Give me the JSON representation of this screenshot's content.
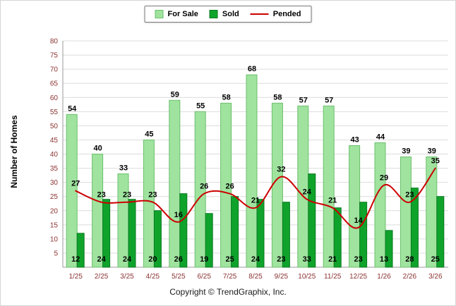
{
  "chart_data": {
    "type": "bar",
    "title": "",
    "ylabel": "Number of Homes",
    "xlabel": "",
    "ylim": [
      0,
      80
    ],
    "ytick_step": 5,
    "grid": true,
    "legend_position": "top-center",
    "categories": [
      "1/25",
      "2/25",
      "3/25",
      "4/25",
      "5/25",
      "6/25",
      "7/25",
      "8/25",
      "9/25",
      "10/25",
      "11/25",
      "12/25",
      "1/26",
      "2/26",
      "3/26"
    ],
    "series": [
      {
        "name": "For Sale",
        "type": "bar",
        "color": "#9FE39F",
        "border": "#6CBF6C",
        "values": [
          54,
          40,
          33,
          45,
          59,
          55,
          58,
          68,
          58,
          57,
          57,
          43,
          44,
          39,
          39
        ]
      },
      {
        "name": "Sold",
        "type": "bar",
        "color": "#0FA32C",
        "border": "#0A7A1F",
        "values": [
          12,
          24,
          24,
          20,
          26,
          19,
          25,
          24,
          23,
          33,
          21,
          23,
          13,
          28,
          25
        ]
      },
      {
        "name": "Pended",
        "type": "line",
        "color": "#CC0000",
        "border": "#CC0000",
        "values": [
          27,
          23,
          23,
          23,
          16,
          26,
          26,
          21,
          32,
          24,
          21,
          14,
          29,
          23,
          35
        ]
      }
    ],
    "colors": {
      "grid": "#DCDCDC",
      "axis": "#999999",
      "axis_text": "#8B3232",
      "value_label": "#000000"
    }
  },
  "footer": {
    "copyright_text": "Copyright © TrendGraphix, Inc."
  }
}
